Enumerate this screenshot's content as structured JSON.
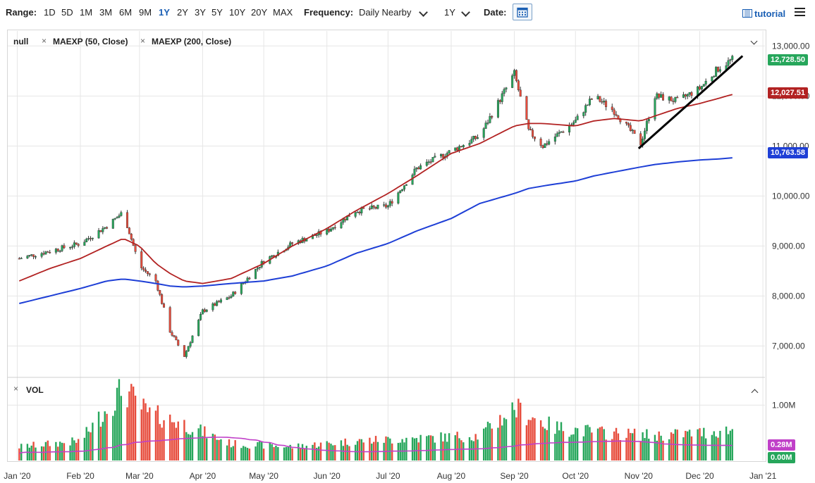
{
  "toolbar": {
    "range_label": "Range:",
    "ranges": [
      "1D",
      "5D",
      "1M",
      "3M",
      "6M",
      "9M",
      "1Y",
      "2Y",
      "3Y",
      "5Y",
      "10Y",
      "20Y",
      "MAX"
    ],
    "active_range": "1Y",
    "frequency_label": "Frequency:",
    "frequency_value": "Daily Nearby",
    "period_value": "1Y",
    "date_label": "Date:",
    "tutorial_label": "tutorial",
    "calendar_icon": "calendar-icon",
    "menu_icon": "hamburger-icon"
  },
  "legend": {
    "main_series": "null",
    "study1": "MAEXP (50, Close)",
    "study2": "MAEXP (200, Close)",
    "volume": "VOL"
  },
  "colors": {
    "up": "#26a65b",
    "down": "#e74c3c",
    "ma50": "#b22222",
    "ma200": "#1e3fd6",
    "vol_ma": "#c040c8",
    "trendline": "#000000"
  },
  "chart_data": [
    {
      "type": "line",
      "subtype": "candlestick",
      "x": [
        "2020-01-02",
        "2020-01-17",
        "2020-02-01",
        "2020-02-14",
        "2020-02-22",
        "2020-03-01",
        "2020-03-09",
        "2020-03-16",
        "2020-03-23",
        "2020-04-01",
        "2020-04-15",
        "2020-05-01",
        "2020-05-15",
        "2020-06-01",
        "2020-06-15",
        "2020-07-01",
        "2020-07-15",
        "2020-08-01",
        "2020-08-15",
        "2020-09-01",
        "2020-09-08",
        "2020-09-15",
        "2020-10-01",
        "2020-10-10",
        "2020-10-20",
        "2020-11-02",
        "2020-11-09",
        "2020-11-20",
        "2020-12-01",
        "2020-12-10",
        "2020-12-17"
      ],
      "series": [
        {
          "name": "null",
          "values": [
            8750,
            8900,
            9050,
            9400,
            9680,
            8600,
            8300,
            7300,
            6800,
            7700,
            8000,
            8700,
            9050,
            9300,
            9700,
            9800,
            10550,
            10900,
            11200,
            12450,
            11300,
            11000,
            11500,
            12000,
            11700,
            11050,
            12000,
            11900,
            12150,
            12550,
            12730
          ]
        },
        {
          "name": "MAEXP (50, Close)",
          "values": [
            8300,
            8550,
            8750,
            9000,
            9150,
            9000,
            8650,
            8450,
            8300,
            8250,
            8350,
            8650,
            9000,
            9350,
            9700,
            10050,
            10400,
            10850,
            11050,
            11400,
            11450,
            11450,
            11400,
            11500,
            11550,
            11500,
            11600,
            11750,
            11850,
            11950,
            12030
          ]
        },
        {
          "name": "MAEXP (200, Close)",
          "values": [
            7850,
            8000,
            8150,
            8300,
            8340,
            8300,
            8250,
            8200,
            8180,
            8200,
            8250,
            8300,
            8400,
            8600,
            8850,
            9050,
            9300,
            9550,
            9850,
            10050,
            10150,
            10200,
            10300,
            10400,
            10480,
            10580,
            10630,
            10680,
            10720,
            10740,
            10764
          ]
        }
      ],
      "trendline": {
        "from": [
          "2020-11-01",
          10950
        ],
        "to": [
          "2020-12-22",
          12800
        ]
      },
      "last_values": {
        "price": "12,728.50",
        "ma50": "12,027.51",
        "ma200": "10,763.58"
      },
      "yticks": [
        "13,000.00",
        "12,000.00",
        "11,000.00",
        "10,000.00",
        "9,000.00",
        "8,000.00",
        "7,000.00"
      ],
      "ylim": [
        6400,
        13300
      ],
      "xticks": [
        "Jan '20",
        "Feb '20",
        "Mar '20",
        "Apr '20",
        "May '20",
        "Jun '20",
        "Jul '20",
        "Aug '20",
        "Sep '20",
        "Oct '20",
        "Nov '20",
        "Dec '20",
        "Jan '21"
      ],
      "grid": true,
      "legend_position": "top-left"
    },
    {
      "type": "bar",
      "title": "VOL",
      "x": [
        "2020-01-02",
        "2020-02-01",
        "2020-02-22",
        "2020-03-05",
        "2020-03-20",
        "2020-04-15",
        "2020-05-15",
        "2020-06-15",
        "2020-07-15",
        "2020-08-15",
        "2020-09-01",
        "2020-09-20",
        "2020-10-15",
        "2020-11-10",
        "2020-12-01",
        "2020-12-17"
      ],
      "values": [
        0.25,
        0.35,
        1.3,
        0.85,
        0.7,
        0.3,
        0.25,
        0.35,
        0.4,
        0.45,
        0.95,
        0.6,
        0.5,
        0.45,
        0.5,
        0.55
      ],
      "last_values": {
        "vol_ma": "0.28M",
        "vol": "0.00M"
      },
      "yticks": [
        "1.00M"
      ],
      "ylim": [
        0,
        1.45
      ]
    }
  ]
}
